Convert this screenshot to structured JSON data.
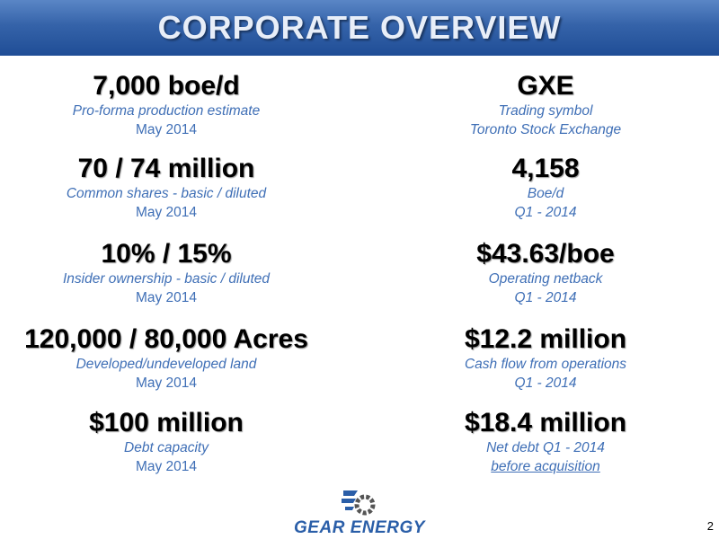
{
  "header": {
    "title": "CORPORATE OVERVIEW"
  },
  "left": [
    {
      "value": "7,000 boe/d",
      "lines": [
        "Pro-forma production estimate",
        "May 2014"
      ]
    },
    {
      "value": "70 / 74 million",
      "lines": [
        "Common shares - basic / diluted",
        "May 2014"
      ]
    },
    {
      "value": "10% / 15%",
      "lines": [
        "Insider ownership - basic / diluted",
        "May 2014"
      ]
    },
    {
      "value": "120,000 / 80,000 Acres",
      "lines": [
        "Developed/undeveloped land",
        "May 2014"
      ]
    },
    {
      "value": "$100 million",
      "lines": [
        "Debt capacity",
        "May 2014"
      ]
    }
  ],
  "right": [
    {
      "value": "GXE",
      "lines": [
        "Trading symbol",
        "Toronto Stock Exchange"
      ]
    },
    {
      "value": "4,158",
      "lines": [
        "Boe/d",
        "Q1 - 2014"
      ]
    },
    {
      "value": "$43.63/boe",
      "lines": [
        "Operating netback",
        "Q1 - 2014"
      ]
    },
    {
      "value": "$12.2 million",
      "lines": [
        "Cash flow from operations",
        "Q1 - 2014"
      ]
    },
    {
      "value": "$18.4 million",
      "lines": [
        "Net debt Q1 - 2014",
        "before acquisition"
      ]
    }
  ],
  "logo": {
    "text": "GEAR ENERGY"
  },
  "page_number": "2"
}
